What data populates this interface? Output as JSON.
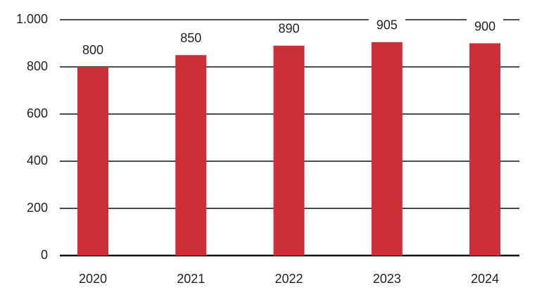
{
  "chart_data": {
    "type": "bar",
    "categories": [
      "2020",
      "2021",
      "2022",
      "2023",
      "2024"
    ],
    "values": [
      800,
      850,
      890,
      905,
      900
    ],
    "color": "#cc2f37",
    "ylim": [
      0,
      1000
    ],
    "yticks": [
      0,
      200,
      400,
      600,
      800,
      {
        "value": 1000,
        "label": "1.000"
      }
    ],
    "grid": true
  }
}
